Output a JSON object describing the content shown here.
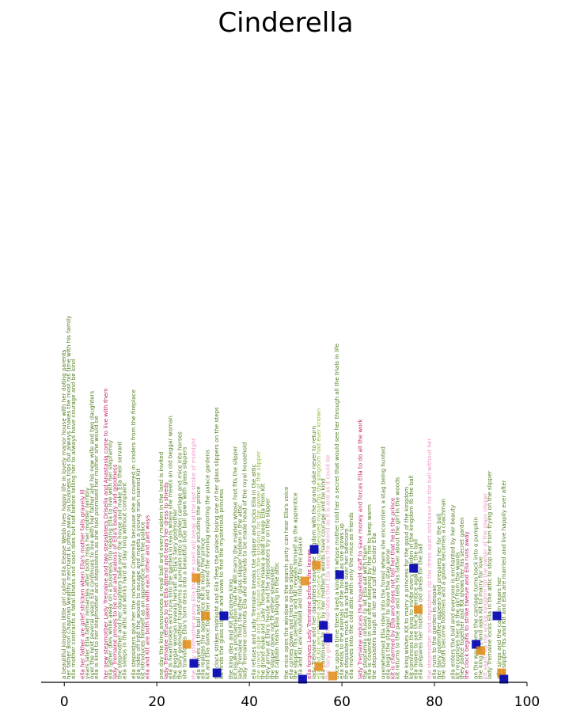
{
  "chart_data": {
    "type": "scatter",
    "title": "Cinderella",
    "xlabel": "",
    "ylabel": "",
    "xlim": [
      -5,
      100
    ],
    "xticks": [
      0,
      20,
      40,
      60,
      80,
      100
    ],
    "grid": false,
    "colors": {
      "sentence_green": "#4f7f1f",
      "sentence_pink": "#c2256b",
      "sentence_light_pink": "#ec9ac5",
      "sentence_lime": "#8fc12e",
      "marker_blue": "#0a0ab4",
      "marker_orange": "#e08a14"
    },
    "sentences": [
      {
        "x": 0,
        "color": "green",
        "text": "a beautiful kingdom little girl called Ella Elease Webb lives happy life in lovely manor house with her doting parents"
      },
      {
        "x": 1,
        "color": "green",
        "text": "her father Bron Chapman wealthy merchant is often away on business trips but always makes the most his time with his family"
      },
      {
        "x": 2,
        "color": "green",
        "text": "ella mother contracts a fatal illness and soon dies but not before telling her to always have courage and be kind"
      },
      {
        "x": 4,
        "color": "pink",
        "text": "ella her father are grief stricken when Ella's mother falls gravely ill"
      },
      {
        "x": 5,
        "color": "green",
        "text": "years later Ella father remarries after both miss her mother terribly"
      },
      {
        "x": 6,
        "color": "green",
        "text": "over the next several years Ella continues to live with her father and his new wife and two daughters"
      },
      {
        "x": 7,
        "color": "green",
        "text": "ella is kind to her stepmother and stepsisters as she had promised her mother she would be"
      },
      {
        "x": 9,
        "color": "pink",
        "text": "her new stepmother Lady Tremaine and two stepsisters Drisella and Anastasia come to live with them"
      },
      {
        "x": 10,
        "color": "green",
        "text": "ella father dies while away on a business trip leaving Ella to live with her stepfamily"
      },
      {
        "x": 11,
        "color": "pink",
        "text": "lady Tremaine proves to be cruel and jealous of Ella's beauty and goodness"
      },
      {
        "x": 12,
        "color": "green",
        "text": "the stepmother and her daughters take over the house and make Ella their servant"
      },
      {
        "x": 13,
        "color": "green",
        "text": "ella sleeps in the attic and works hard all day long without complaint"
      },
      {
        "x": 15,
        "color": "green",
        "text": "ella stepsisters give her the nickname Cinderella because she is covered in cinders from the fireplace"
      },
      {
        "x": 16,
        "color": "green",
        "text": "ella rides off into the woods to escape and meets a young man named Kit"
      },
      {
        "x": 17,
        "color": "green",
        "text": "kit introduces himself as an apprentice from the palace"
      },
      {
        "x": 18,
        "color": "pink",
        "text": "ella and Kit are both taken with each other and part ways"
      },
      {
        "x": 21,
        "color": "green",
        "text": "one day the king announces a royal ball and every maiden in the land is invited"
      },
      {
        "x": 22,
        "color": "pink",
        "text": "lady Tremaine refuses to let Ella attend and tears her dress to shreds"
      },
      {
        "x": 23,
        "color": "green",
        "text": "ella is heartbroken and runs into the garden in tears where she meets an old beggar woman"
      },
      {
        "x": 24,
        "color": "green",
        "text": "the beggar woman reveals herself as Ella's fairy godmother"
      },
      {
        "x": 25,
        "color": "green",
        "text": "the fairy godmother transforms a pumpkin into a golden carriage and mice into horses"
      },
      {
        "x": 26,
        "color": "green",
        "text": "she transforms Ella's torn dress into a beautiful blue ball gown with glass slippers"
      },
      {
        "x": 28,
        "color": "light_pink",
        "text": "the fairy godmother warns Ella that the spell will break at the last stroke of midnight"
      },
      {
        "x": 29,
        "color": "green",
        "text": "ella arrives at the ball and captivates everyone including the prince"
      },
      {
        "x": 30,
        "color": "green",
        "text": "ella realizes the apprentice Kit is really the prince"
      },
      {
        "x": 31,
        "color": "green",
        "text": "kit and Ella dance together and spend the evening exploring the palace gardens"
      },
      {
        "x": 33,
        "color": "green",
        "text": "the clock strikes midnight and Ella flees the palace losing one of her glass slippers on the steps"
      },
      {
        "x": 34,
        "color": "green",
        "text": "kit finds the glass slipper and vows to find the mysterious princess"
      },
      {
        "x": 36,
        "color": "green",
        "text": "the king dies and Kit becomes king"
      },
      {
        "x": 37,
        "color": "green",
        "text": "kit issues a proclamation that he will marry the maiden whose foot fits the slipper"
      },
      {
        "x": 38,
        "color": "green",
        "text": "lady Tremaine finds the other glass slipper hidden in the attic"
      },
      {
        "x": 39,
        "color": "green",
        "text": "lady Tremaine confronts Ella and demands to be made head of the royal household"
      },
      {
        "x": 41,
        "color": "green",
        "text": "ella refuses and Lady Tremaine breaks the slipper and locks Ella in the attic"
      },
      {
        "x": 42,
        "color": "lime",
        "text": "the grand duke and the captain search the kingdom for the owner of the slipper"
      },
      {
        "x": 43,
        "color": "green",
        "text": "the grand duke and Lady Tremaine make a deal to keep Ella from Kit"
      },
      {
        "x": 44,
        "color": "green",
        "text": "they arrive at Ella's house and the stepsisters try on the slipper"
      },
      {
        "x": 45,
        "color": "green",
        "text": "the slipper does not fit either stepsister"
      },
      {
        "x": 46,
        "color": "green",
        "text": "the captain hears Ella singing in the attic"
      },
      {
        "x": 48,
        "color": "green",
        "text": "the mice open the window so the search party can hear Ella's voice"
      },
      {
        "x": 49,
        "color": "green",
        "text": "ella comes down and tries on the slipper"
      },
      {
        "x": 50,
        "color": "green",
        "text": "the slipper fits perfectly and Kit reveals himself as the apprentice"
      },
      {
        "x": 51,
        "color": "green",
        "text": "ella and Kit are reunited and ride off to the palace"
      },
      {
        "x": 53,
        "color": "pink",
        "text": "ella forgives Lady Tremaine before she leaves"
      },
      {
        "x": 54,
        "color": "green",
        "text": "lady Tremaine and her daughters leave the kingdom with the grand duke never to return"
      },
      {
        "x": 55,
        "color": "lime",
        "text": "ella and Kit are married and become the most beloved monarchs the kingdom had ever known"
      },
      {
        "x": 56,
        "color": "green",
        "text": "ella continues to live by her mother's words have courage and be kind"
      },
      {
        "x": 57,
        "color": "light_pink",
        "text": "the fairy godmother narrates that Ella sees the world as it is and as it could be"
      },
      {
        "x": 59,
        "color": "green",
        "text": "once upon a time there lived a kind girl whose mother told her a secret that would see her through all the trials in life"
      },
      {
        "x": 60,
        "color": "green",
        "text": "ella tends to the animals of the house as she grows up"
      },
      {
        "x": 61,
        "color": "green",
        "text": "the stepsisters mock Ella and take over her bedroom"
      },
      {
        "x": 62,
        "color": "green",
        "text": "ella moves into the cold attic with only the mice as friends"
      },
      {
        "x": 64,
        "color": "pink",
        "text": "lady Tremaine reduces the household staff to save money and forces Ella to do all the work"
      },
      {
        "x": 65,
        "color": "green",
        "text": "the stepfamily refuses to let Ella eat with them"
      },
      {
        "x": 66,
        "color": "green",
        "text": "ella is covered in soot after sleeping by the fire to keep warm"
      },
      {
        "x": 67,
        "color": "green",
        "text": "the stepsisters laugh at her and call her Cinder Ella"
      },
      {
        "x": 69,
        "color": "green",
        "text": "overwhelmed Ella rides into the forest where she encounters a stag being hunted"
      },
      {
        "x": 70,
        "color": "green",
        "text": "ella begs the stranger to leave the stag alone"
      },
      {
        "x": 71,
        "color": "pink",
        "text": "kit is charmed by Ella and does not tell her that he is the prince"
      },
      {
        "x": 72,
        "color": "green",
        "text": "kit returns to the palace and tells his father about the girl in the woods"
      },
      {
        "x": 74,
        "color": "green",
        "text": "the king wishes Kit to marry a princess for the good of the kingdom"
      },
      {
        "x": 75,
        "color": "green",
        "text": "kit convinces the king to invite every maiden in the kingdom to the ball"
      },
      {
        "x": 76,
        "color": "green",
        "text": "ella hopes to see the apprentice again at the ball"
      },
      {
        "x": 77,
        "color": "green",
        "text": "ella prepares her mother's old dress for the ball"
      },
      {
        "x": 79,
        "color": "light_pink",
        "text": "the stepmother and stepsisters rip the dress apart and leave for the ball without her"
      },
      {
        "x": 80,
        "color": "green",
        "text": "ella runs to the garden in despair"
      },
      {
        "x": 81,
        "color": "green",
        "text": "her fairy godmother appears and prepares her for the ball"
      },
      {
        "x": 82,
        "color": "green",
        "text": "the lizards become footmen and a goose becomes a coachman"
      },
      {
        "x": 84,
        "color": "green",
        "text": "ella enters the ball and everyone is enchanted by her beauty"
      },
      {
        "x": 85,
        "color": "green",
        "text": "kit recognizes her as the girl from the woods"
      },
      {
        "x": 86,
        "color": "green",
        "text": "they dance together and Kit shows her his secret garden"
      },
      {
        "x": 87,
        "color": "pink",
        "text": "the clock begins to strike twelve and Ella runs away"
      },
      {
        "x": 89,
        "color": "green",
        "text": "on the way home the carriage turns back into a pumpkin"
      },
      {
        "x": 90,
        "color": "green",
        "text": "the king dies and asks Kit to marry for love"
      },
      {
        "x": 91,
        "color": "light_pink",
        "text": "kit searches the entire kingdom for the owner of the glass slipper"
      },
      {
        "x": 92,
        "color": "green",
        "text": "lady Tremaine locks Ella in the attic to stop her from trying on the slipper"
      },
      {
        "x": 94,
        "color": "green",
        "text": "ella sings and the captain hears her"
      },
      {
        "x": 95,
        "color": "green",
        "text": "the slipper fits and Kit and Ella are married and live happily ever after"
      }
    ],
    "markers": [
      {
        "x": 28.5,
        "rank": 0.33,
        "color": "orange"
      },
      {
        "x": 34.5,
        "rank": 0.21,
        "color": "blue"
      },
      {
        "x": 26.5,
        "rank": 0.12,
        "color": "orange"
      },
      {
        "x": 28.0,
        "rank": 0.06,
        "color": "blue"
      },
      {
        "x": 30.5,
        "rank": 0.21,
        "color": "orange"
      },
      {
        "x": 33.0,
        "rank": 0.03,
        "color": "blue"
      },
      {
        "x": 52.0,
        "rank": 0.32,
        "color": "orange"
      },
      {
        "x": 54.5,
        "rank": 0.37,
        "color": "orange"
      },
      {
        "x": 54.0,
        "rank": 0.42,
        "color": "blue"
      },
      {
        "x": 59.5,
        "rank": 0.34,
        "color": "blue"
      },
      {
        "x": 56.0,
        "rank": 0.18,
        "color": "blue"
      },
      {
        "x": 57.0,
        "rank": 0.14,
        "color": "blue"
      },
      {
        "x": 55.0,
        "rank": 0.05,
        "color": "orange"
      },
      {
        "x": 58.0,
        "rank": 0.02,
        "color": "orange"
      },
      {
        "x": 51.5,
        "rank": 0.01,
        "color": "blue"
      },
      {
        "x": 75.5,
        "rank": 0.36,
        "color": "blue"
      },
      {
        "x": 76.5,
        "rank": 0.23,
        "color": "orange"
      },
      {
        "x": 89.0,
        "rank": 0.12,
        "color": "blue"
      },
      {
        "x": 90.0,
        "rank": 0.1,
        "color": "orange"
      },
      {
        "x": 93.5,
        "rank": 0.21,
        "color": "blue"
      },
      {
        "x": 94.5,
        "rank": 0.03,
        "color": "orange"
      },
      {
        "x": 95.0,
        "rank": 0.01,
        "color": "blue"
      }
    ]
  }
}
